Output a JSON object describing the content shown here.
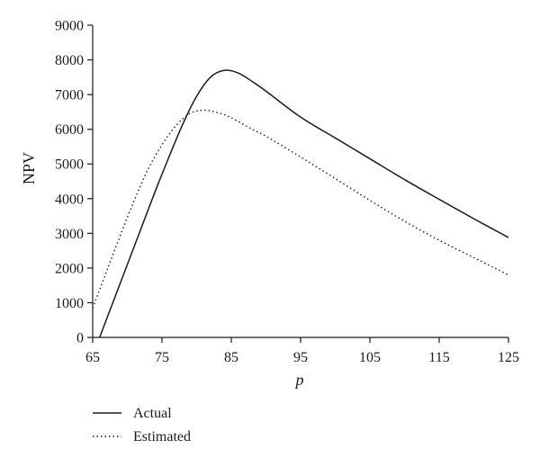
{
  "chart_data": {
    "type": "line",
    "xlabel": "p",
    "ylabel": "NPV",
    "xlim": [
      65,
      125
    ],
    "ylim": [
      0,
      9000
    ],
    "x_ticks": [
      65,
      75,
      85,
      95,
      105,
      115,
      125
    ],
    "y_ticks": [
      0,
      1000,
      2000,
      3000,
      4000,
      5000,
      6000,
      7000,
      8000,
      9000
    ],
    "legend_position": "bottom-left",
    "grid": false,
    "series": [
      {
        "name": "Actual",
        "style": "solid",
        "color": "#1a1a1a",
        "x": [
          66,
          68,
          70,
          72,
          74,
          76,
          78,
          80,
          82,
          84,
          86,
          88,
          90,
          95,
          100,
          105,
          110,
          115,
          120,
          125
        ],
        "y": [
          0,
          1050,
          2100,
          3150,
          4200,
          5200,
          6150,
          6950,
          7500,
          7700,
          7620,
          7380,
          7100,
          6350,
          5750,
          5150,
          4550,
          3980,
          3420,
          2880
        ]
      },
      {
        "name": "Estimated",
        "style": "dotted",
        "color": "#1a1a1a",
        "x": [
          65,
          67,
          69,
          71,
          73,
          75,
          77,
          79,
          81,
          83,
          85,
          88,
          90,
          95,
          100,
          105,
          110,
          115,
          120,
          125
        ],
        "y": [
          850,
          1900,
          2950,
          3950,
          4850,
          5550,
          6100,
          6450,
          6550,
          6480,
          6330,
          6000,
          5800,
          5200,
          4580,
          3950,
          3350,
          2800,
          2300,
          1800
        ]
      }
    ]
  }
}
